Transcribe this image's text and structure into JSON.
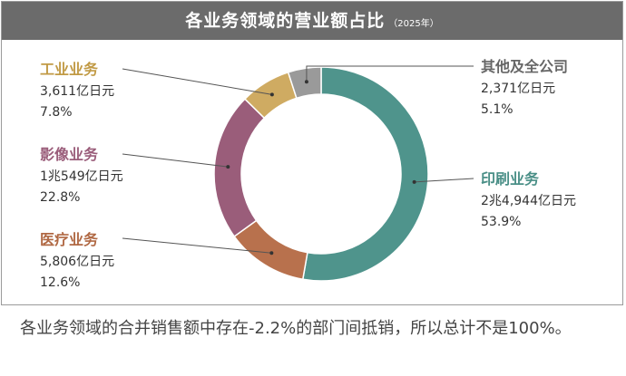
{
  "title": "各业务领域的营业额占比",
  "title_sub": "（2025年）",
  "chart_data": {
    "type": "pie",
    "categories": [
      "印刷业务",
      "医疗业务",
      "影像业务",
      "工业业务",
      "其他及全公司"
    ],
    "values": [
      53.9,
      12.6,
      22.8,
      7.8,
      5.1
    ],
    "amounts": [
      "2兆4,944亿日元",
      "5,806亿日元",
      "1兆549亿日元",
      "3,611亿日元",
      "2,371亿日元"
    ],
    "percent_labels": [
      "53.9%",
      "12.6%",
      "22.8%",
      "7.8%",
      "5.1%"
    ],
    "colors": [
      "#4f948c",
      "#b8714d",
      "#9a5d7a",
      "#cfab62",
      "#9a9a9a"
    ],
    "label_colors": [
      "#4a8f87",
      "#b06843",
      "#9a5d7a",
      "#c19a45",
      "#666666"
    ],
    "donut": true
  },
  "note": "各业务领域的合并销售额中存在-2.2%的部门间抵销，所以总计不是100%。"
}
